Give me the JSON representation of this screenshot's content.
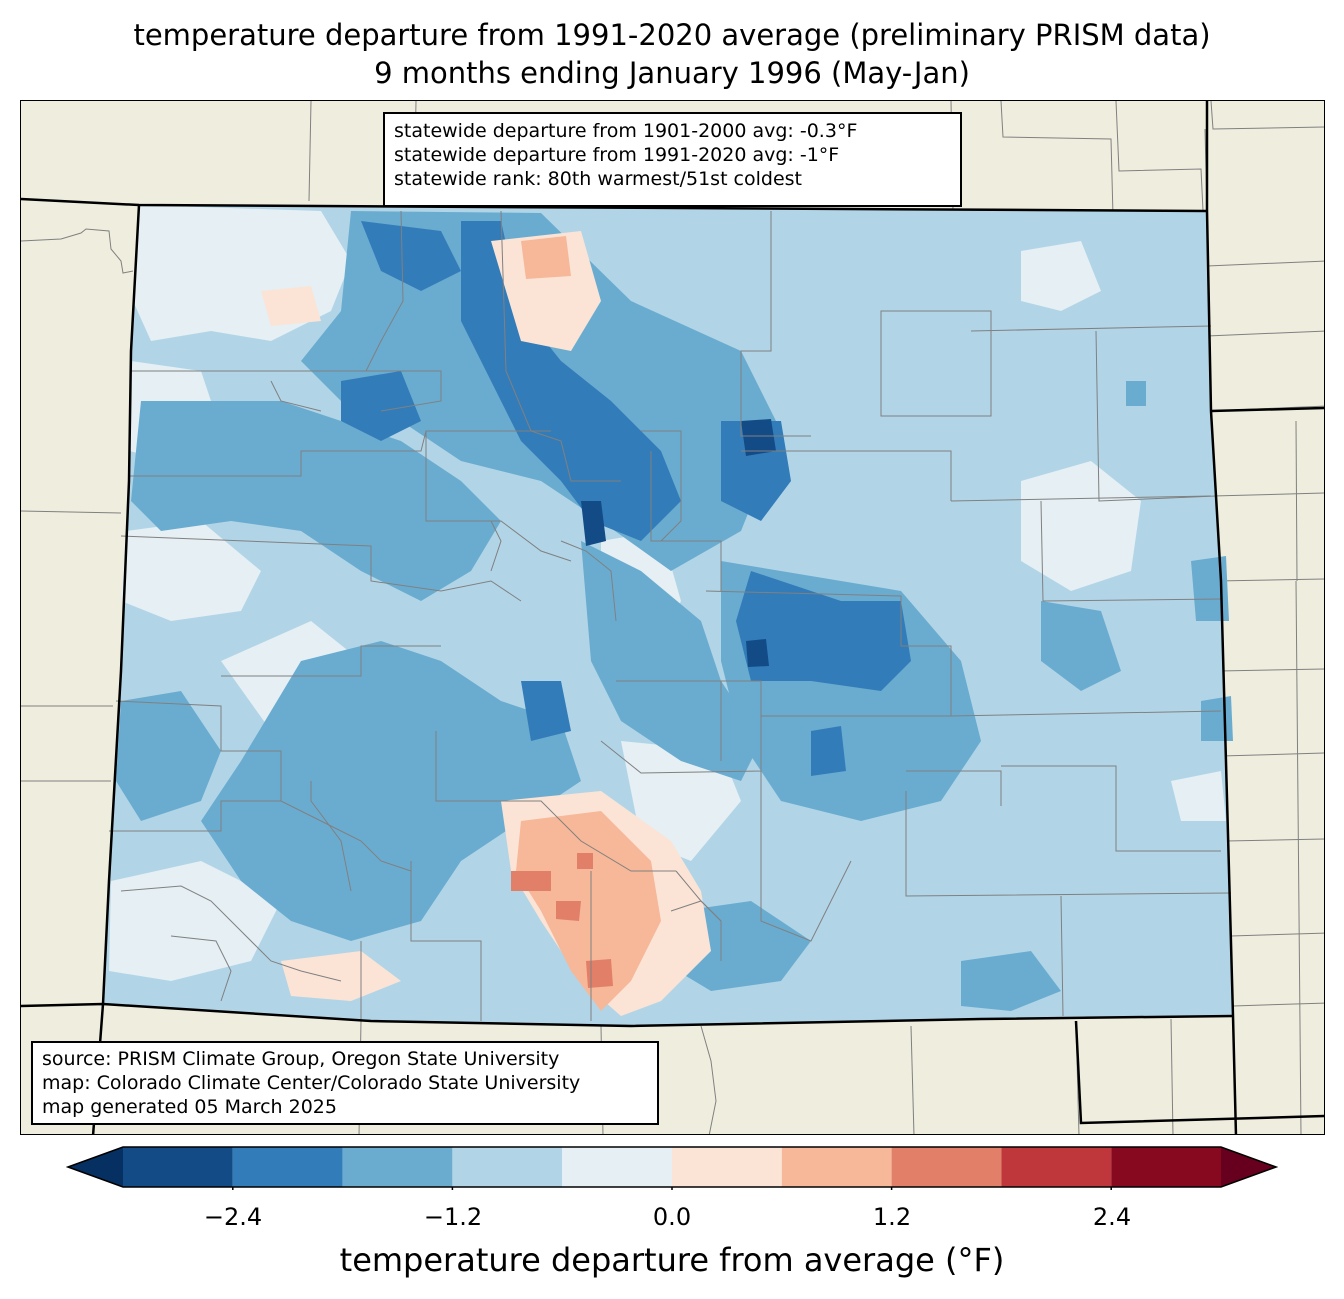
{
  "title": {
    "line1": "temperature departure from 1991-2020 average (preliminary PRISM data)",
    "line2": "9 months ending January 1996 (May-Jan)"
  },
  "stats_box": {
    "line1": "statewide departure from 1901-2000 avg: -0.3°F",
    "line2": "statewide departure from 1991-2020 avg: -1°F",
    "line3": "statewide rank: 80th warmest/51st coldest"
  },
  "source_box": {
    "line1": "source: PRISM Climate Group, Oregon State University",
    "line2": "map: Colorado Climate Center/Colorado State University",
    "line3": "map generated 05 March 2025"
  },
  "colorbar": {
    "label": "temperature departure from average (°F)",
    "ticks": [
      "−2.4",
      "−1.2",
      "0.0",
      "1.2",
      "2.4"
    ],
    "bins": [
      -3.0,
      -2.4,
      -1.8,
      -1.2,
      -0.6,
      0.0,
      0.6,
      1.2,
      1.8,
      2.4,
      3.0
    ],
    "colors": [
      "#134b87",
      "#327cb9",
      "#6aacd0",
      "#b1d5e7",
      "#e5eff4",
      "#fbe4d6",
      "#f7b799",
      "#e27f69",
      "#c0373b",
      "#87091f"
    ],
    "under_color": "#053061",
    "over_color": "#67001f"
  },
  "colors": {
    "land_background": "#efedde",
    "county_lines": "#808080"
  }
}
